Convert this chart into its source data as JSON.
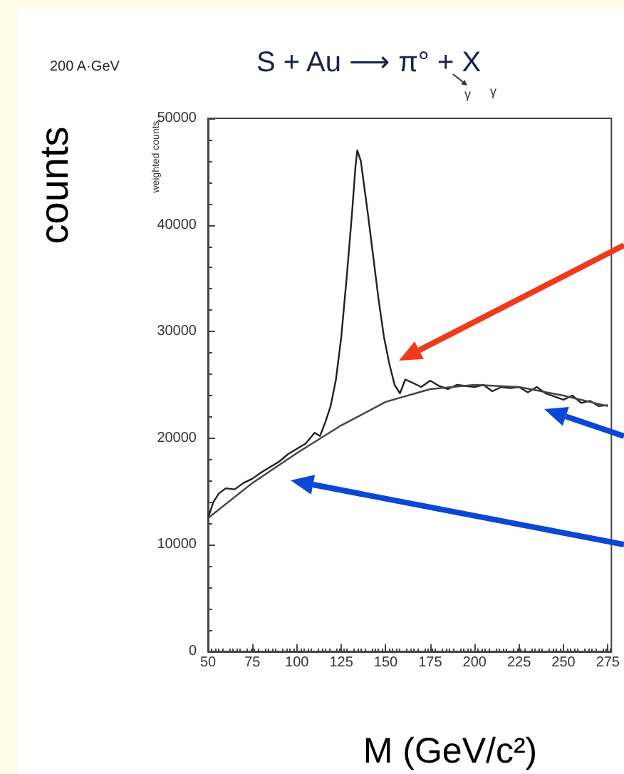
{
  "chart_data": {
    "type": "line",
    "title": "200 A·GeV",
    "subtitle": "S + Au ⟶ π° + X",
    "ylabel": "counts",
    "xlabel": "M (GeV/c²)",
    "annotations": [
      "weighted counts",
      "γ",
      "γ"
    ],
    "xlim": [
      50,
      277
    ],
    "xticks": [
      50,
      75,
      100,
      125,
      150,
      175,
      200,
      225,
      250,
      275
    ],
    "ylim": [
      0,
      50000
    ],
    "yticks": [
      0,
      10000,
      20000,
      30000,
      40000,
      50000
    ],
    "grid": false,
    "marker": "none",
    "line_style": "solid",
    "series": [
      {
        "color": "#222222",
        "x": [
          50,
          53,
          56,
          60,
          65,
          70,
          75,
          80,
          85,
          90,
          95,
          100,
          105,
          110,
          113,
          116,
          119,
          122,
          125,
          128,
          131,
          133,
          134,
          136,
          138,
          140,
          143,
          146,
          149,
          152,
          155,
          158,
          161,
          165,
          170,
          175,
          180,
          185,
          190,
          195,
          200,
          205,
          210,
          215,
          220,
          225,
          230,
          235,
          240,
          245,
          250,
          255,
          260,
          265,
          270,
          275
        ],
        "values": [
          12500,
          14000,
          14800,
          15300,
          15200,
          15800,
          16200,
          16800,
          17300,
          17800,
          18500,
          19000,
          19500,
          20500,
          20200,
          21500,
          23000,
          25500,
          29500,
          35000,
          41000,
          45500,
          47000,
          46000,
          43500,
          41000,
          37000,
          33000,
          29500,
          27000,
          25000,
          24200,
          25500,
          25200,
          24800,
          25400,
          24900,
          24600,
          25000,
          24900,
          24800,
          25000,
          24400,
          24800,
          24700,
          24800,
          24300,
          24800,
          24200,
          23900,
          23600,
          24000,
          23300,
          23500,
          23000,
          23100
        ]
      },
      {
        "color": "#444444",
        "x": [
          50,
          75,
          100,
          125,
          150,
          175,
          200,
          225,
          250,
          275
        ],
        "values": [
          12500,
          15800,
          18600,
          21200,
          23400,
          24600,
          25000,
          24800,
          24000,
          23000
        ]
      }
    ]
  }
}
